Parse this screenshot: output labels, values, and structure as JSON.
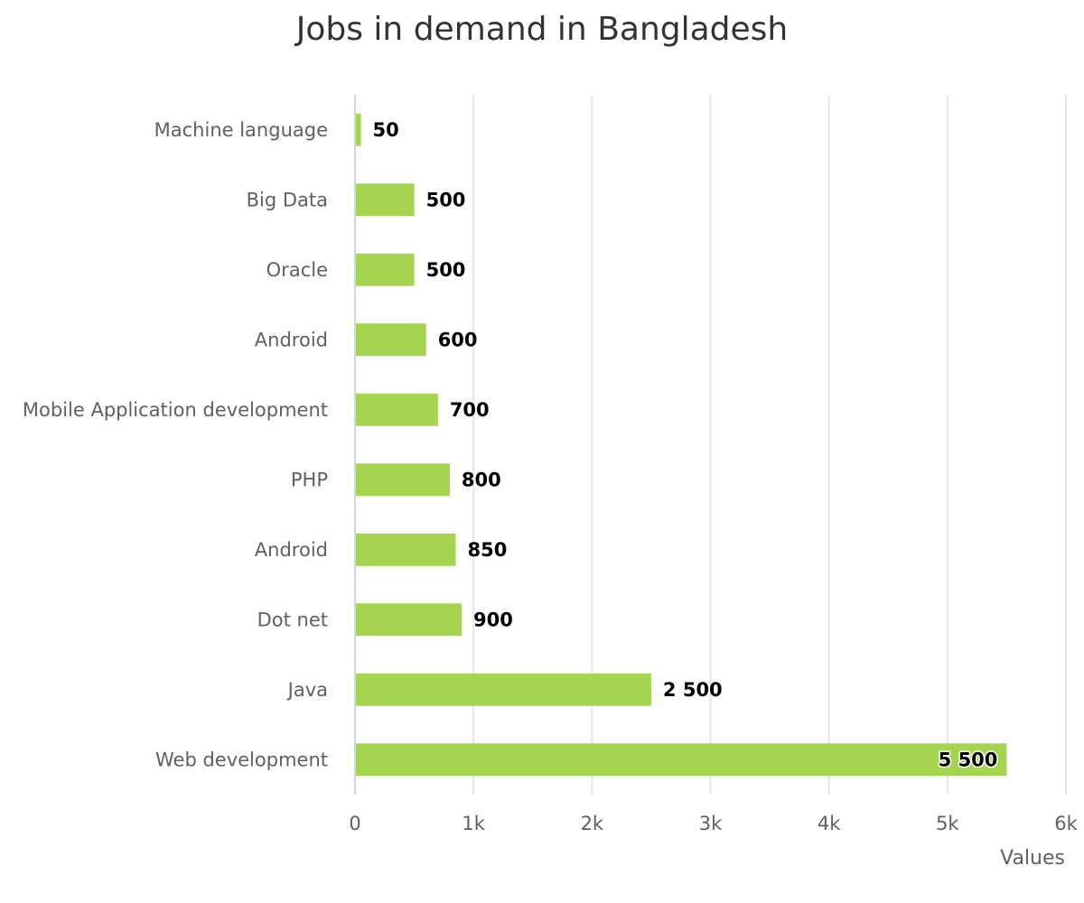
{
  "chart_data": {
    "type": "bar",
    "orientation": "horizontal",
    "title": "Jobs in demand in Bangladesh",
    "xlabel": "Values",
    "ylabel": "",
    "categories": [
      "Machine language",
      "Big Data",
      "Oracle",
      "Android",
      "Mobile Application development",
      "PHP",
      "Android",
      "Dot net",
      "Java",
      "Web development"
    ],
    "values": [
      50,
      500,
      500,
      600,
      700,
      800,
      850,
      900,
      2500,
      5500
    ],
    "value_labels": [
      "50",
      "500",
      "500",
      "600",
      "700",
      "800",
      "850",
      "900",
      "2 500",
      "5 500"
    ],
    "xlim": [
      0,
      6000
    ],
    "ticks": [
      0,
      1000,
      2000,
      3000,
      4000,
      5000,
      6000
    ],
    "tick_labels": [
      "0",
      "1k",
      "2k",
      "3k",
      "4k",
      "5k",
      "6k"
    ],
    "grid": true,
    "legend": "none",
    "bar_color": "#a5d450",
    "grid_color": "#e6e6e6",
    "axis_color": "#ccd6eb"
  }
}
